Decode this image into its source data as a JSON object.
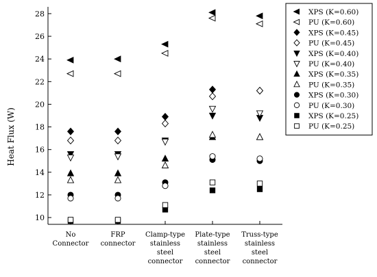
{
  "chart_data": {
    "type": "scatter",
    "title": "",
    "xlabel": "",
    "ylabel": "Heat Flux (W)",
    "ylim": [
      9.4,
      28.6
    ],
    "yticks": [
      10,
      12,
      14,
      16,
      18,
      20,
      22,
      24,
      26,
      28
    ],
    "categories": [
      [
        "No",
        "Connector"
      ],
      [
        "FRP",
        "connector"
      ],
      [
        "Clamp-type",
        "stainless",
        "steel",
        "connector"
      ],
      [
        "Plate-type",
        "stainless",
        "steel",
        "connector"
      ],
      [
        "Truss-type",
        "stainless",
        "steel",
        "connector"
      ]
    ],
    "legend_position": "top-right",
    "series": [
      {
        "name": "XPS (K=0.60)",
        "marker": "triangle-left",
        "fill": "filled",
        "values": [
          23.9,
          24.0,
          25.3,
          28.1,
          27.8
        ]
      },
      {
        "name": "PU (K=0.60)",
        "marker": "triangle-left",
        "fill": "open",
        "values": [
          22.7,
          22.7,
          24.5,
          27.6,
          27.1
        ]
      },
      {
        "name": "XPS (K=0.45)",
        "marker": "diamond",
        "fill": "filled",
        "values": [
          17.6,
          17.6,
          18.9,
          21.3,
          21.2
        ]
      },
      {
        "name": "PU (K=0.45)",
        "marker": "diamond",
        "fill": "open",
        "values": [
          16.8,
          16.8,
          18.3,
          20.7,
          21.2
        ]
      },
      {
        "name": "XPS (K=0.40)",
        "marker": "triangle-down",
        "fill": "filled",
        "values": [
          15.6,
          15.6,
          16.8,
          19.0,
          18.8
        ]
      },
      {
        "name": "PU (K=0.40)",
        "marker": "triangle-down",
        "fill": "open",
        "values": [
          15.3,
          15.4,
          16.7,
          19.6,
          19.2
        ]
      },
      {
        "name": "XPS (K=0.35)",
        "marker": "triangle-up",
        "fill": "filled",
        "values": [
          13.9,
          13.9,
          15.2,
          17.1,
          17.1
        ]
      },
      {
        "name": "PU (K=0.35)",
        "marker": "triangle-up",
        "fill": "open",
        "values": [
          13.3,
          13.3,
          14.6,
          17.3,
          17.1
        ]
      },
      {
        "name": "XPS (K=0.30)",
        "marker": "circle",
        "fill": "filled",
        "values": [
          12.0,
          12.0,
          13.1,
          15.1,
          15.0
        ]
      },
      {
        "name": "PU (K=0.30)",
        "marker": "circle",
        "fill": "open",
        "values": [
          11.7,
          11.7,
          12.8,
          15.4,
          15.2
        ]
      },
      {
        "name": "XPS (K=0.25)",
        "marker": "square",
        "fill": "filled",
        "values": [
          9.7,
          9.7,
          10.7,
          12.4,
          12.5
        ]
      },
      {
        "name": "PU (K=0.25)",
        "marker": "square",
        "fill": "open",
        "values": [
          9.8,
          9.8,
          11.1,
          13.1,
          13.0
        ]
      }
    ]
  }
}
